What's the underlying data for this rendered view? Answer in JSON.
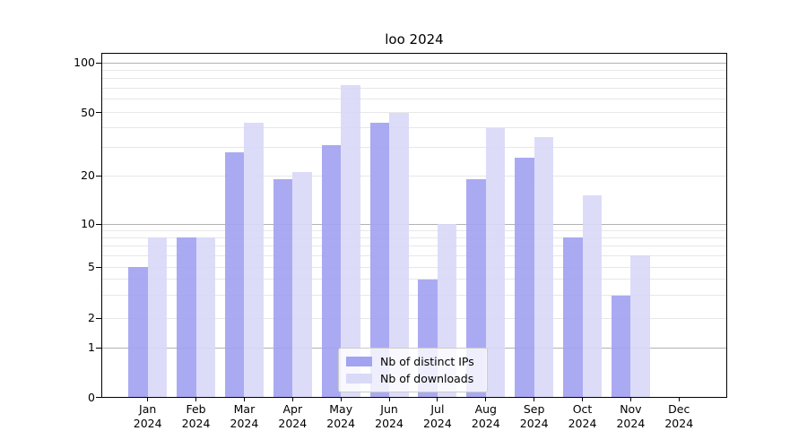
{
  "title": "loo 2024",
  "legend": {
    "items": [
      {
        "label": "Nb of distinct IPs"
      },
      {
        "label": "Nb of downloads"
      }
    ]
  },
  "chart_data": {
    "type": "bar",
    "title": "loo 2024",
    "categories": [
      "Jan",
      "Feb",
      "Mar",
      "Apr",
      "May",
      "Jun",
      "Jul",
      "Aug",
      "Sep",
      "Oct",
      "Nov",
      "Dec"
    ],
    "year_label": "2024",
    "series": [
      {
        "name": "Nb of distinct IPs",
        "color": "#a3a3f1",
        "values": [
          5,
          8,
          28,
          19,
          31,
          43,
          4,
          19,
          26,
          8,
          3,
          0
        ]
      },
      {
        "name": "Nb of downloads",
        "color": "#d9d9f8",
        "values": [
          8,
          8,
          43,
          21,
          73,
          50,
          10,
          40,
          35,
          15,
          6,
          0
        ]
      }
    ],
    "y_axis": {
      "scale": "log",
      "range": [
        0,
        100
      ],
      "ticks": [
        0,
        1,
        2,
        5,
        10,
        20,
        50,
        100
      ]
    },
    "grid": {
      "major_lines": [
        1,
        10,
        100
      ],
      "minor_lines": [
        2,
        3,
        4,
        5,
        6,
        7,
        8,
        9,
        20,
        30,
        40,
        50,
        60,
        70,
        80,
        90
      ]
    },
    "legend_position": "inside-bottom-center"
  },
  "colors": {
    "bar_distinct_ips": "#a3a3f1",
    "bar_downloads": "#d9d9f8",
    "grid_major": "#b2b2b2",
    "grid_minor": "#e7e7e7",
    "axis": "#000000",
    "background": "#ffffff"
  }
}
